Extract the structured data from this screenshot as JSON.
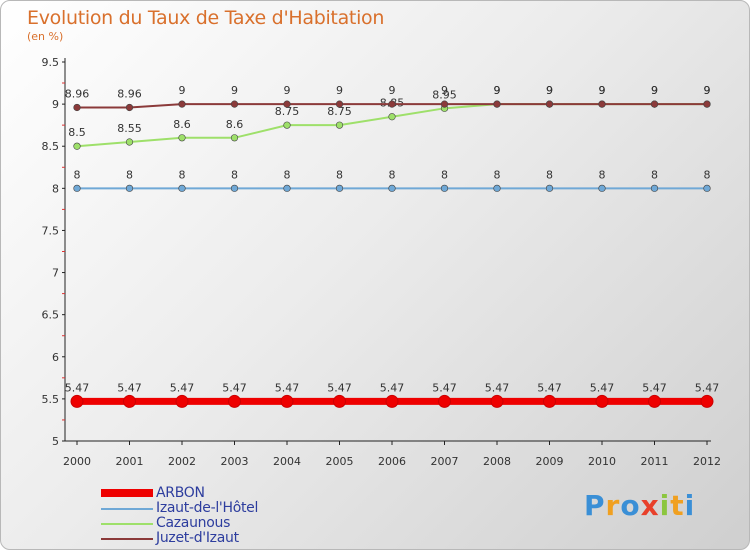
{
  "chart_data": {
    "type": "line",
    "title": "Evolution du Taux de Taxe d'Habitation",
    "subtitle": "(en %)",
    "xlabel": "",
    "ylabel": "",
    "x": [
      "2000",
      "2001",
      "2002",
      "2003",
      "2004",
      "2005",
      "2006",
      "2007",
      "2008",
      "2009",
      "2010",
      "2011",
      "2012"
    ],
    "ylim": [
      5,
      9.5
    ],
    "yticks": [
      "5",
      "5.5",
      "6",
      "6.5",
      "7",
      "7.5",
      "8",
      "8.5",
      "9",
      "9.5"
    ],
    "grid": false,
    "legend_position": "bottom-left",
    "series": [
      {
        "name": "ARBON",
        "color": "#ee0000",
        "values": [
          5.47,
          5.47,
          5.47,
          5.47,
          5.47,
          5.47,
          5.47,
          5.47,
          5.47,
          5.47,
          5.47,
          5.47,
          5.47
        ],
        "labels": [
          "5.47",
          "5.47",
          "5.47",
          "5.47",
          "5.47",
          "5.47",
          "5.47",
          "5.47",
          "5.47",
          "5.47",
          "5.47",
          "5.47",
          "5.47"
        ]
      },
      {
        "name": "Izaut-de-l'Hôtel",
        "color": "#6fa8d6",
        "values": [
          8,
          8,
          8,
          8,
          8,
          8,
          8,
          8,
          8,
          8,
          8,
          8,
          8
        ],
        "labels": [
          "8",
          "8",
          "8",
          "8",
          "8",
          "8",
          "8",
          "8",
          "8",
          "8",
          "8",
          "8",
          "8"
        ]
      },
      {
        "name": "Cazaunous",
        "color": "#9ee06a",
        "values": [
          8.5,
          8.55,
          8.6,
          8.6,
          8.75,
          8.75,
          8.85,
          8.95,
          9,
          9,
          9,
          9,
          9
        ],
        "labels": [
          "8.5",
          "8.55",
          "8.6",
          "8.6",
          "8.75",
          "8.75",
          "8.85",
          "8.95",
          "9",
          "9",
          "9",
          "9",
          "9"
        ]
      },
      {
        "name": "Juzet-d'Izaut",
        "color": "#8b3a3a",
        "values": [
          8.96,
          8.96,
          9,
          9,
          9,
          9,
          9,
          9,
          9,
          9,
          9,
          9,
          9
        ],
        "labels": [
          "8.96",
          "8.96",
          "9",
          "9",
          "9",
          "9",
          "9",
          "9",
          "9",
          "9",
          "9",
          "9",
          "9"
        ]
      }
    ]
  },
  "logo": {
    "letters": [
      {
        "ch": "P",
        "color": "#3a8fd6"
      },
      {
        "ch": "r",
        "color": "#f0a020"
      },
      {
        "ch": "o",
        "color": "#3a8fd6"
      },
      {
        "ch": "x",
        "color": "#e8402a"
      },
      {
        "ch": "i",
        "color": "#8cc63f"
      },
      {
        "ch": "t",
        "color": "#f0a020"
      },
      {
        "ch": "i",
        "color": "#3a8fd6"
      }
    ]
  }
}
